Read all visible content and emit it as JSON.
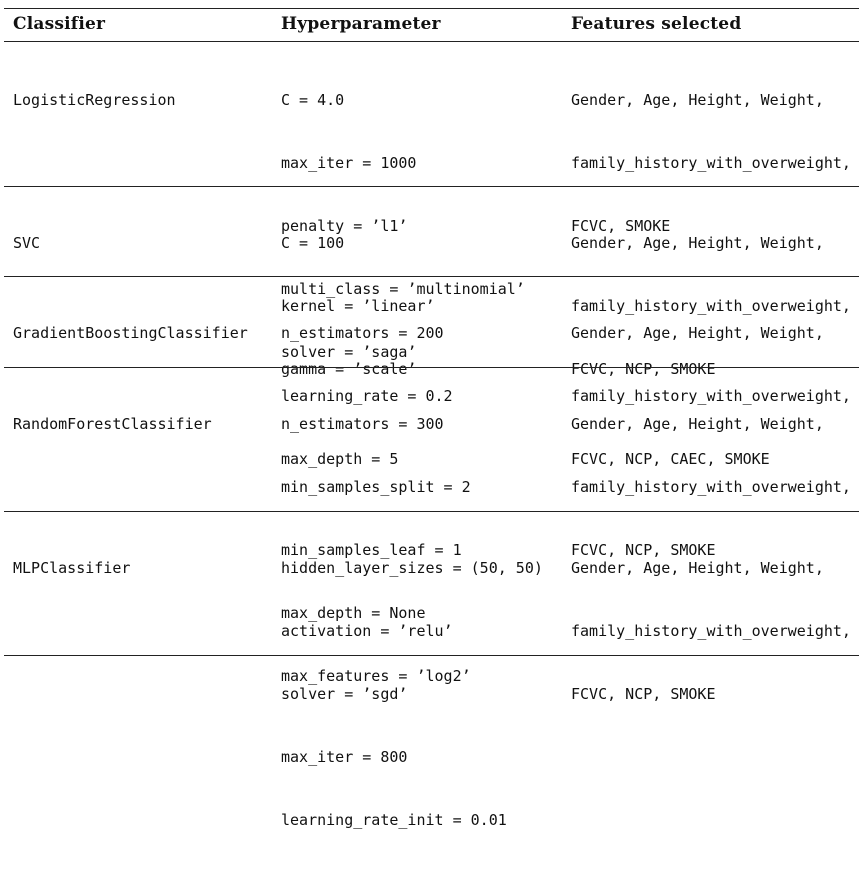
{
  "headers": {
    "classifier": "Classifier",
    "hyperparameter": "Hyperparameter",
    "features": "Features selected"
  },
  "rows": [
    {
      "classifier": "LogisticRegression",
      "hyperparameters": [
        "C = 4.0",
        "max_iter = 1000",
        "penalty = ’l1’",
        "multi_class = ’multinomial’",
        "solver = ’saga’"
      ],
      "features": [
        "Gender, Age, Height, Weight,",
        "family_history_with_overweight,",
        "FCVC, SMOKE"
      ]
    },
    {
      "classifier": "SVC",
      "hyperparameters": [
        "C = 100",
        "kernel = ’linear’",
        "gamma = ’scale’"
      ],
      "features": [
        "Gender, Age, Height, Weight,",
        "family_history_with_overweight,",
        "FCVC, NCP, SMOKE"
      ]
    },
    {
      "classifier": "GradientBoostingClassifier",
      "hyperparameters": [
        "n_estimators = 200",
        "learning_rate = 0.2",
        "max_depth = 5"
      ],
      "features": [
        "Gender, Age, Height, Weight,",
        "family_history_with_overweight,",
        "FCVC, NCP, CAEC, SMOKE"
      ]
    },
    {
      "classifier": "RandomForestClassifier",
      "hyperparameters": [
        "n_estimators = 300",
        "min_samples_split = 2",
        "min_samples_leaf = 1",
        "max_depth = None",
        "max_features = ’log2’"
      ],
      "features": [
        "Gender, Age, Height, Weight,",
        "family_history_with_overweight,",
        "FCVC, NCP, SMOKE"
      ]
    },
    {
      "classifier": "MLPClassifier",
      "hyperparameters": [
        "hidden_layer_sizes = (50, 50)",
        "activation = ’relu’",
        "solver = ’sgd’",
        "max_iter = 800",
        "learning_rate_init = 0.01"
      ],
      "features": [
        "Gender, Age, Height, Weight,",
        "family_history_with_overweight,",
        "FCVC, NCP, SMOKE"
      ]
    }
  ]
}
